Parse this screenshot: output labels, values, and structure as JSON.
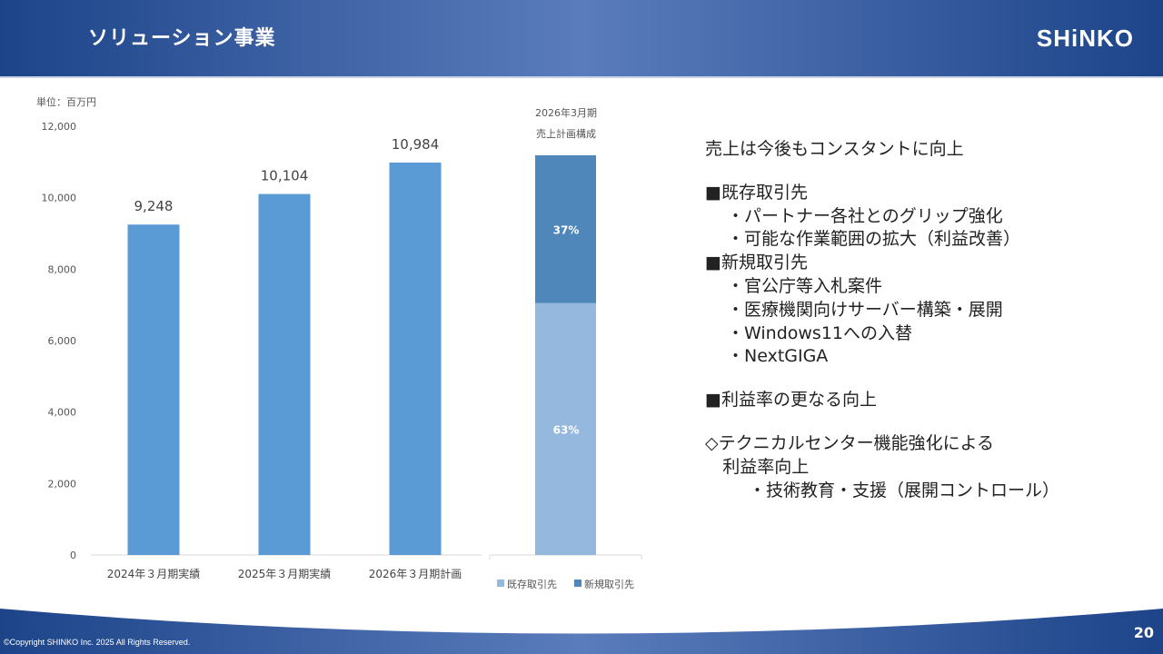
{
  "header": {
    "title": "ソリューション事業",
    "logo": "SHiNKO"
  },
  "footer": {
    "copyright": "©Copyright SHINKO Inc. 2025 All Rights Reserved.",
    "page": "20"
  },
  "chart_data": [
    {
      "type": "bar",
      "unit_label": "単位：百万円",
      "categories": [
        "2024年３月期実績",
        "2025年３月期実績",
        "2026年３月期計画"
      ],
      "values": [
        9248,
        10104,
        10984
      ],
      "data_labels": [
        "9,248",
        "10,104",
        "10,984"
      ],
      "ylim": [
        0,
        12000
      ],
      "yticks": [
        "0",
        "2,000",
        "4,000",
        "6,000",
        "8,000",
        "10,000",
        "12,000"
      ],
      "ytick_values": [
        0,
        2000,
        4000,
        6000,
        8000,
        10000,
        12000
      ],
      "grid": false,
      "color": "#5b9bd5"
    },
    {
      "type": "bar",
      "stacked": true,
      "title_lines": [
        "2026年3月期",
        "売上計画構成"
      ],
      "total": 10984,
      "series": [
        {
          "name": "既存取引先",
          "value": 63,
          "label": "63%",
          "color": "#95b8de"
        },
        {
          "name": "新規取引先",
          "value": 37,
          "label": "37%",
          "color": "#4f87bb"
        }
      ],
      "legend": "bottom"
    }
  ],
  "text": {
    "lines": [
      {
        "t": "売上は今後もコンスタントに向上",
        "indent": 0,
        "gap": 0
      },
      {
        "t": "■既存取引先",
        "indent": 0,
        "gap": 1
      },
      {
        "t": "・パートナー各社とのグリップ強化",
        "indent": 1,
        "gap": 0
      },
      {
        "t": "・可能な作業範囲の拡大（利益改善）",
        "indent": 1,
        "gap": 0
      },
      {
        "t": "■新規取引先",
        "indent": 0,
        "gap": 0
      },
      {
        "t": "・官公庁等入札案件",
        "indent": 1,
        "gap": 0
      },
      {
        "t": "・医療機関向けサーバー構築・展開",
        "indent": 1,
        "gap": 0
      },
      {
        "t": "・Windows11への入替",
        "indent": 1,
        "gap": 0
      },
      {
        "t": "・NextGIGA",
        "indent": 1,
        "gap": 0
      },
      {
        "t": "■利益率の更なる向上",
        "indent": 0,
        "gap": 1
      },
      {
        "t": "◇テクニカルセンター機能強化による",
        "indent": 0,
        "gap": 1
      },
      {
        "t": "利益率向上",
        "indent": 0.8,
        "gap": 0
      },
      {
        "t": "・技術教育・支援（展開コントロール）",
        "indent": 2,
        "gap": 0
      }
    ]
  }
}
